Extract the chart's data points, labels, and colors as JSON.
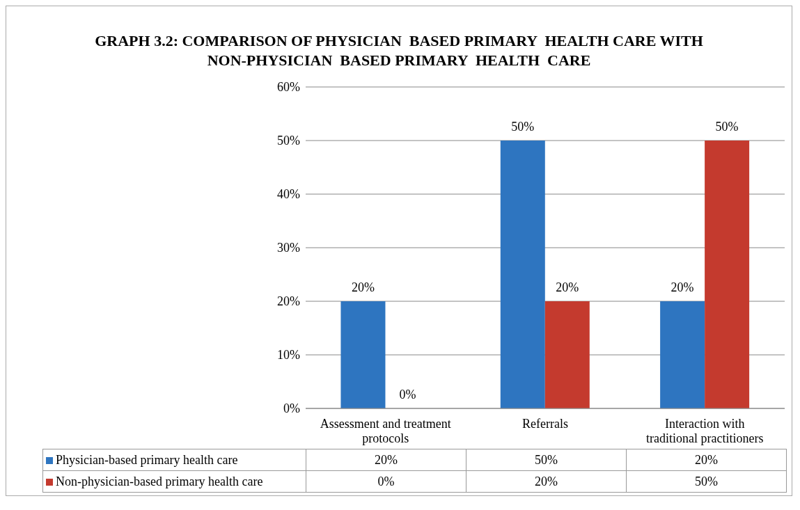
{
  "chart_data": {
    "type": "bar",
    "title": "GRAPH 3.2: COMPARISON OF PHYSICIAN  BASED PRIMARY  HEALTH CARE WITH NON-PHYSICIAN  BASED PRIMARY  HEALTH  CARE",
    "categories": [
      "Assessment and treatment protocols",
      "Referrals",
      "Interaction with traditional practitioners"
    ],
    "series": [
      {
        "name": "Physician-based primary health care",
        "color": "#2e75c0",
        "values": [
          20,
          50,
          20
        ],
        "value_labels": [
          "20%",
          "50%",
          "20%"
        ]
      },
      {
        "name": "Non-physician-based primary health care",
        "color": "#c43a2e",
        "values": [
          0,
          20,
          50
        ],
        "value_labels": [
          "0%",
          "20%",
          "50%"
        ]
      }
    ],
    "ylim": [
      0,
      60
    ],
    "yticks": [
      {
        "value": 0,
        "label": "0%"
      },
      {
        "value": 10,
        "label": "10%"
      },
      {
        "value": 20,
        "label": "20%"
      },
      {
        "value": 30,
        "label": "30%"
      },
      {
        "value": 40,
        "label": "40%"
      },
      {
        "value": 50,
        "label": "50%"
      },
      {
        "value": 60,
        "label": "60%"
      }
    ],
    "grid": "y",
    "legend": "bottom"
  }
}
